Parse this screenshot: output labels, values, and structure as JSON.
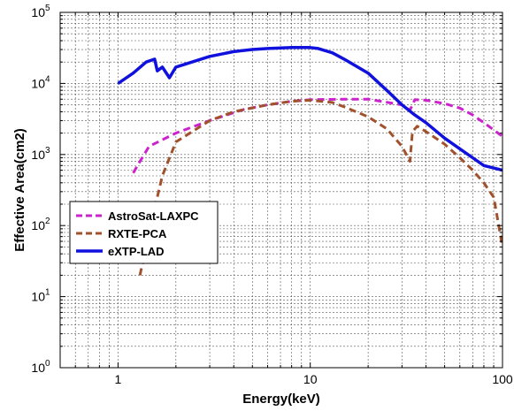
{
  "chart_data": {
    "type": "line",
    "xlabel": "Energy(keV)",
    "ylabel": "Effective Area(cm2)",
    "xscale": "log",
    "yscale": "log",
    "xlim": [
      0.5,
      100
    ],
    "ylim": [
      1,
      100000
    ],
    "x_tick_labels": [
      "1",
      "10",
      "100"
    ],
    "y_tick_labels": [
      {
        "base": "10",
        "exp": "0"
      },
      {
        "base": "10",
        "exp": "1"
      },
      {
        "base": "10",
        "exp": "2"
      },
      {
        "base": "10",
        "exp": "3"
      },
      {
        "base": "10",
        "exp": "4"
      },
      {
        "base": "10",
        "exp": "5"
      }
    ],
    "grid": true,
    "legend_position": "middle-left",
    "series": [
      {
        "name": "AstroSat-LAXPC",
        "color": "#cc22cc",
        "style": "dashed",
        "x": [
          1.2,
          1.3,
          1.45,
          2.0,
          3.0,
          4.5,
          6,
          8,
          10,
          15,
          20,
          30,
          33,
          35,
          40,
          50,
          60,
          70,
          80,
          100
        ],
        "y": [
          550,
          800,
          1300,
          2000,
          3000,
          4300,
          5000,
          5600,
          5900,
          6000,
          6000,
          5000,
          4200,
          5900,
          5800,
          5200,
          4500,
          3600,
          2800,
          1800
        ]
      },
      {
        "name": "RXTE-PCA",
        "color": "#a0522d",
        "style": "dashed",
        "x": [
          1.3,
          1.5,
          1.7,
          2.0,
          3.0,
          4.0,
          6,
          8,
          10,
          13,
          15,
          20,
          25,
          30,
          33,
          34,
          36,
          40,
          50,
          60,
          70,
          80,
          90,
          100
        ],
        "y": [
          20,
          120,
          500,
          1500,
          3000,
          4000,
          5000,
          5600,
          5800,
          5400,
          4700,
          3400,
          2300,
          1300,
          800,
          2100,
          2500,
          2100,
          1400,
          900,
          600,
          400,
          250,
          50
        ]
      },
      {
        "name": "eXTP-LAD",
        "color": "#1111dd",
        "style": "solid",
        "x": [
          1.0,
          1.2,
          1.4,
          1.55,
          1.6,
          1.7,
          1.85,
          2.0,
          3.0,
          4.0,
          5.0,
          6.0,
          8.0,
          10,
          11,
          13,
          15,
          20,
          25,
          30,
          35,
          40,
          50,
          60,
          70,
          80,
          100
        ],
        "y": [
          10000,
          14000,
          20000,
          22000,
          15000,
          17000,
          12000,
          17000,
          24000,
          28000,
          30000,
          31000,
          32000,
          32000,
          31000,
          27000,
          22000,
          14000,
          8000,
          5000,
          3600,
          2800,
          1700,
          1200,
          900,
          700,
          600
        ]
      }
    ]
  }
}
